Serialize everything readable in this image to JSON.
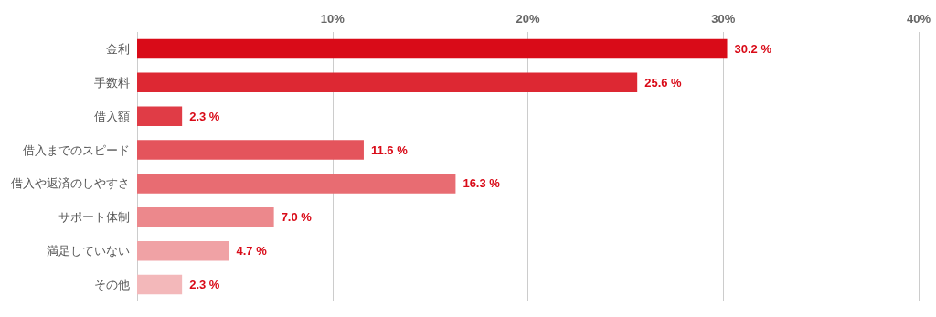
{
  "chart_data": {
    "type": "bar",
    "orientation": "horizontal",
    "categories": [
      "金利",
      "手数料",
      "借入額",
      "借入までのスピード",
      "借入や返済のしやすさ",
      "サポート体制",
      "満足していない",
      "その他"
    ],
    "values": [
      30.2,
      25.6,
      2.3,
      11.6,
      16.3,
      7.0,
      4.7,
      2.3
    ],
    "colors": [
      "#d90b18",
      "#dd2833",
      "#e03c46",
      "#e4545c",
      "#e86c72",
      "#ec888c",
      "#f0a2a5",
      "#f3b8ba"
    ],
    "value_labels": [
      "30.2 %",
      "25.6 %",
      "2.3 %",
      "11.6 %",
      "16.3 %",
      "7.0 %",
      "4.7 %",
      "2.3 %"
    ],
    "xlim": [
      0,
      40
    ],
    "xticks": [
      {
        "value": 0,
        "label": null
      },
      {
        "value": 10,
        "label": "10%"
      },
      {
        "value": 20,
        "label": "20%"
      },
      {
        "value": 30,
        "label": "30%"
      },
      {
        "value": 40,
        "label": "40%"
      }
    ],
    "grid": "x"
  }
}
